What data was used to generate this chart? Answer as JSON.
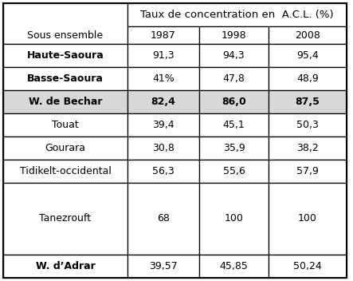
{
  "header_main": "Taux de concentration en  A.C.L. (%)",
  "col_header": [
    "1987",
    "1998",
    "2008"
  ],
  "corner_label": "Sous ensemble",
  "rows": [
    {
      "label": "Haute-Saoura",
      "values": [
        "91,3",
        "94,3",
        "95,4"
      ],
      "bold_label": true,
      "bold_values": false,
      "shaded": false
    },
    {
      "label": "Basse-Saoura",
      "values": [
        "41%",
        "47,8",
        "48,9"
      ],
      "bold_label": true,
      "bold_values": false,
      "shaded": false
    },
    {
      "label": "W. de Bechar",
      "values": [
        "82,4",
        "86,0",
        "87,5"
      ],
      "bold_label": true,
      "bold_values": true,
      "shaded": true
    },
    {
      "label": "Touat",
      "values": [
        "39,4",
        "45,1",
        "50,3"
      ],
      "bold_label": false,
      "bold_values": false,
      "shaded": false
    },
    {
      "label": "Gourara",
      "values": [
        "30,8",
        "35,9",
        "38,2"
      ],
      "bold_label": false,
      "bold_values": false,
      "shaded": false
    },
    {
      "label": "Tidikelt-occidental",
      "values": [
        "56,3",
        "55,6",
        "57,9"
      ],
      "bold_label": false,
      "bold_values": false,
      "shaded": false
    },
    {
      "label": "Tanezrouft",
      "values": [
        "68",
        "100",
        "100"
      ],
      "bold_label": false,
      "bold_values": false,
      "shaded": false,
      "tall": true
    },
    {
      "label": "W. d’Adrar",
      "values": [
        "39,57",
        "45,85",
        "50,24"
      ],
      "bold_label": true,
      "bold_values": false,
      "shaded": false
    }
  ],
  "bg_color": "#ffffff",
  "shaded_color": "#d8d8d8",
  "border_color": "#000000",
  "font_size": 9.0,
  "header_font_size": 9.5,
  "fig_width": 4.43,
  "fig_height": 3.52,
  "dpi": 100
}
